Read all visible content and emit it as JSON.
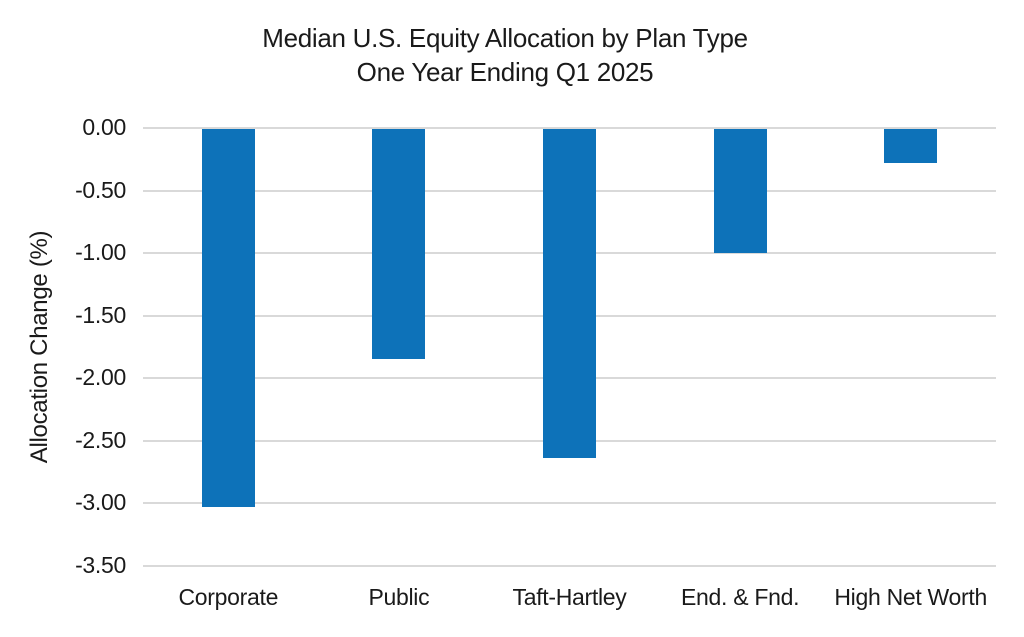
{
  "chart_data": {
    "type": "bar",
    "title": "Median U.S. Equity Allocation by Plan Type",
    "subtitle": "One Year Ending Q1 2025",
    "ylabel": "Allocation Change (%)",
    "xlabel": "",
    "categories": [
      "Corporate",
      "Public",
      "Taft-Hartley",
      "End. & Fnd.",
      "High Net Worth"
    ],
    "values": [
      -3.03,
      -1.85,
      -2.64,
      -1.0,
      -0.28
    ],
    "ylim": [
      -3.5,
      0
    ],
    "ytick_step": 0.5,
    "ytick_labels": [
      "0.00",
      "-0.50",
      "-1.00",
      "-1.50",
      "-2.00",
      "-2.50",
      "-3.00",
      "-3.50"
    ],
    "grid": true,
    "legend_position": "none",
    "bar_color": "#0d72b9",
    "gridline_color": "#d9d9d9",
    "text_color": "#1a1a1a",
    "background_color": "#ffffff"
  }
}
